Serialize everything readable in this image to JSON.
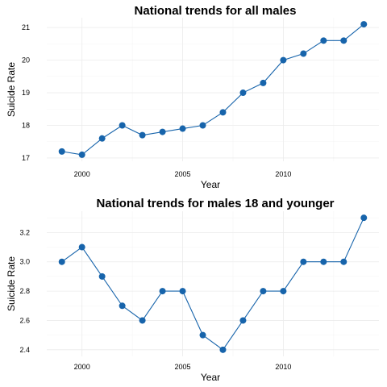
{
  "colors": {
    "series": "#1764ab",
    "grid": "#ebebeb",
    "text": "#000000"
  },
  "chart_data": [
    {
      "type": "line",
      "title": "National trends for all males",
      "xlabel": "Year",
      "ylabel": "Suicide Rate",
      "x": [
        1999,
        2000,
        2001,
        2002,
        2003,
        2004,
        2005,
        2006,
        2007,
        2008,
        2009,
        2010,
        2011,
        2012,
        2013,
        2014
      ],
      "values": [
        17.2,
        17.1,
        17.6,
        18.0,
        17.7,
        17.8,
        17.9,
        18.0,
        18.4,
        19.0,
        19.3,
        20.0,
        20.2,
        20.6,
        20.6,
        21.1
      ],
      "xlim": [
        1998.25,
        2014.75
      ],
      "ylim": [
        16.9,
        21.3
      ],
      "xticks": [
        2000,
        2005,
        2010
      ],
      "yticks": [
        17,
        18,
        19,
        20,
        21
      ],
      "ytick_labels": [
        "17",
        "18",
        "19",
        "20",
        "21"
      ],
      "grid": true,
      "legend": "none"
    },
    {
      "type": "line",
      "title": "National trends for males 18 and younger",
      "xlabel": "Year",
      "ylabel": "Suicide Rate",
      "x": [
        1999,
        2000,
        2001,
        2002,
        2003,
        2004,
        2005,
        2006,
        2007,
        2008,
        2009,
        2010,
        2011,
        2012,
        2013,
        2014
      ],
      "values": [
        3.0,
        3.1,
        2.9,
        2.7,
        2.6,
        2.8,
        2.8,
        2.5,
        2.4,
        2.6,
        2.8,
        2.8,
        3.0,
        3.0,
        3.0,
        3.3
      ],
      "xlim": [
        1998.25,
        2014.75
      ],
      "ylim": [
        2.355,
        3.345
      ],
      "xticks": [
        2000,
        2005,
        2010
      ],
      "yticks": [
        2.4,
        2.6,
        2.8,
        3.0,
        3.2
      ],
      "ytick_labels": [
        "2.4",
        "2.6",
        "2.8",
        "3.0",
        "3.2"
      ],
      "grid": true,
      "legend": "none"
    }
  ]
}
